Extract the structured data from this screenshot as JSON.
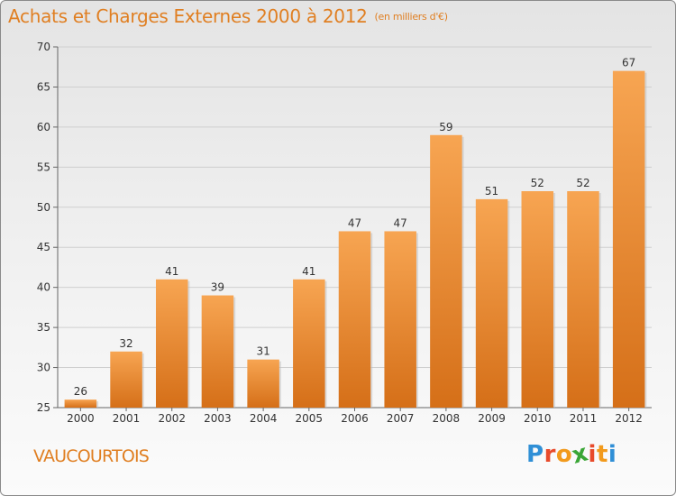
{
  "header": {
    "title": "Achats et Charges Externes 2000 à 2012",
    "unit": "(en milliers d'€)"
  },
  "footer": {
    "commune": "VAUCOURTOIS",
    "logo_letters": [
      {
        "char": "P",
        "color": "#2f8fd6"
      },
      {
        "char": "r",
        "color": "#e84a2b"
      },
      {
        "char": "o",
        "color": "#f29a1c"
      },
      {
        "char": "x",
        "color": "#3aa636"
      },
      {
        "char": "i",
        "color": "#e84a2b"
      },
      {
        "char": "t",
        "color": "#f29a1c"
      },
      {
        "char": "i",
        "color": "#2f8fd6"
      }
    ]
  },
  "colors": {
    "bar_top": "#f7a552",
    "bar_bottom": "#d56f18",
    "title": "#e07f22"
  },
  "chart_data": {
    "type": "bar",
    "title": "Achats et Charges Externes 2000 à 2012",
    "categories": [
      "2000",
      "2001",
      "2002",
      "2003",
      "2004",
      "2005",
      "2006",
      "2007",
      "2008",
      "2009",
      "2010",
      "2011",
      "2012"
    ],
    "values": [
      26,
      32,
      41,
      39,
      31,
      41,
      47,
      47,
      59,
      51,
      52,
      52,
      67
    ],
    "ylim": [
      25,
      70
    ],
    "yticks": [
      25,
      30,
      35,
      40,
      45,
      50,
      55,
      60,
      65,
      70
    ],
    "grid": true,
    "data_labels": true
  }
}
